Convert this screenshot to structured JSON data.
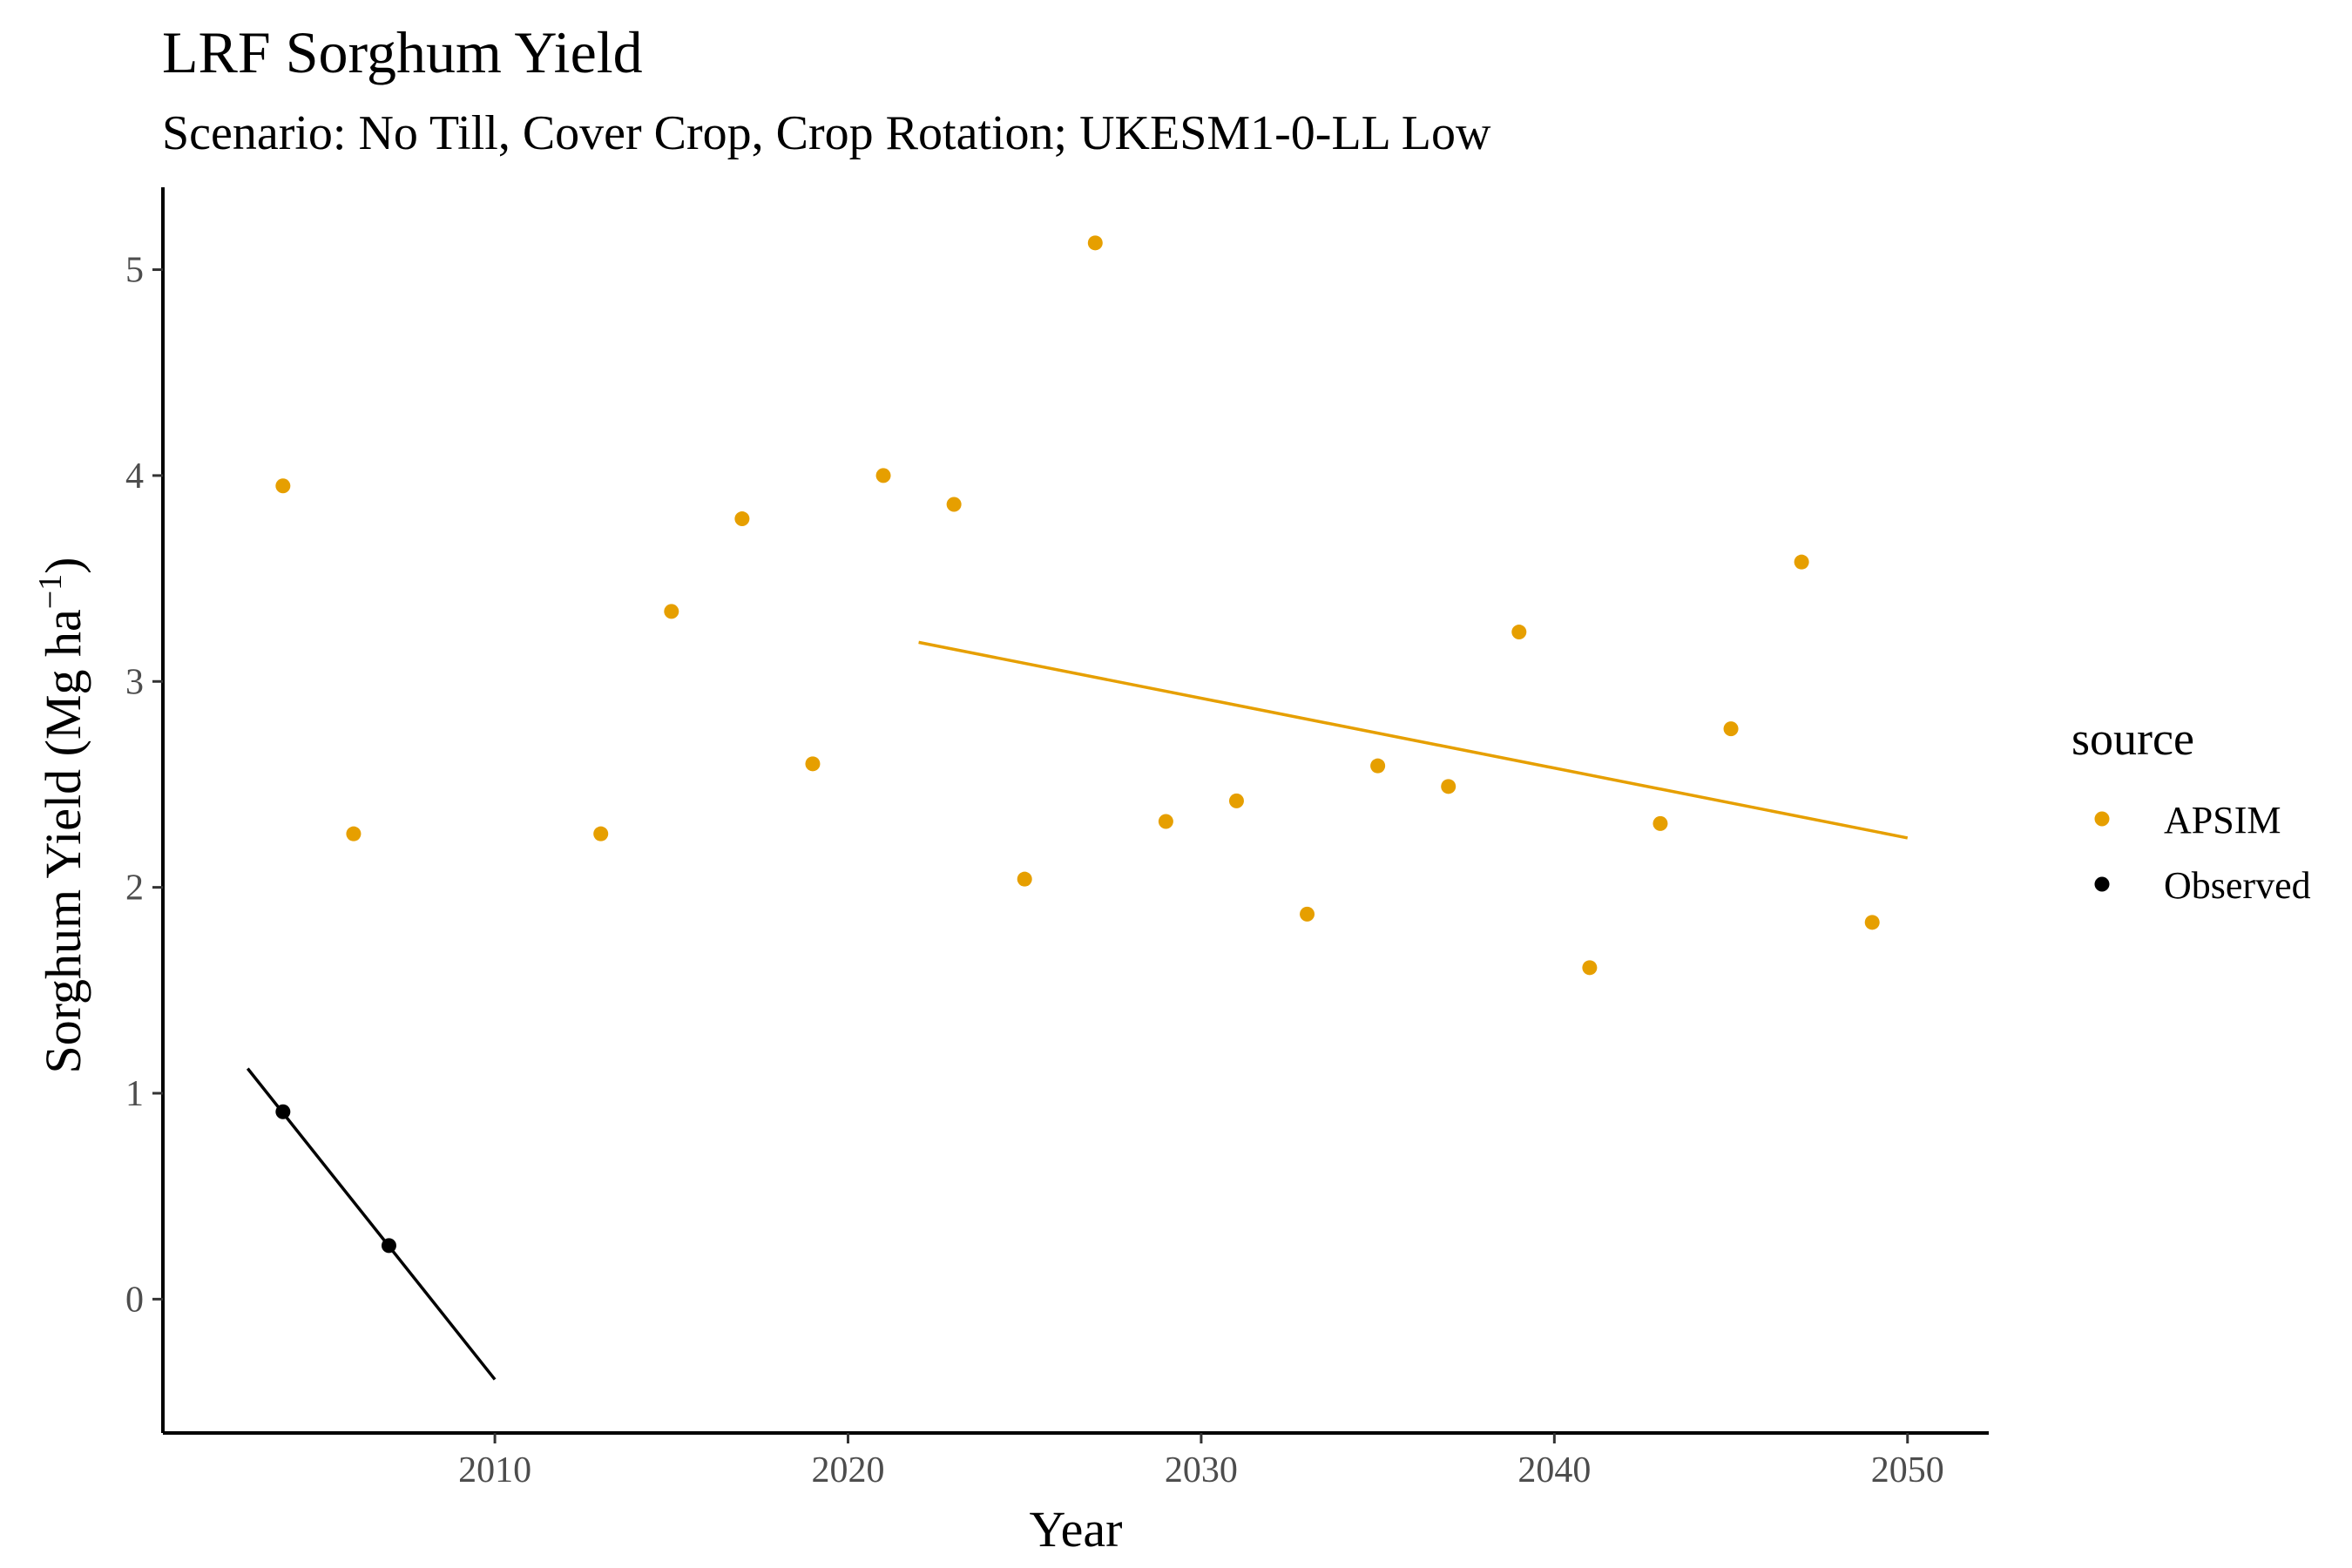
{
  "chart_data": {
    "type": "scatter",
    "title": "LRF Sorghum Yield",
    "subtitle": "Scenario: No Till, Cover Crop, Crop Rotation; UKESM1-0-LL Low",
    "xlabel": "Year",
    "ylabel": "Sorghum Yield (Mg ha",
    "ylabel_superscript": "−1",
    "ylabel_close": ")",
    "xlim": [
      2000.6,
      2052.3
    ],
    "ylim": [
      -0.65,
      5.4
    ],
    "x_ticks": [
      2010,
      2020,
      2030,
      2040,
      2050
    ],
    "y_ticks": [
      0,
      1,
      2,
      3,
      4,
      5
    ],
    "grid": false,
    "legend": {
      "title": "source",
      "position": "right"
    },
    "series": [
      {
        "name": "APSIM",
        "color": "#E69F00",
        "points": [
          [
            2004,
            3.95
          ],
          [
            2006,
            2.26
          ],
          [
            2013,
            2.26
          ],
          [
            2015,
            3.34
          ],
          [
            2017,
            3.79
          ],
          [
            2019,
            2.6
          ],
          [
            2021,
            4.0
          ],
          [
            2023,
            3.86
          ],
          [
            2025,
            2.04
          ],
          [
            2027,
            5.13
          ],
          [
            2029,
            2.32
          ],
          [
            2031,
            2.42
          ],
          [
            2033,
            1.87
          ],
          [
            2035,
            2.59
          ],
          [
            2037,
            2.49
          ],
          [
            2039,
            3.24
          ],
          [
            2041,
            1.61
          ],
          [
            2043,
            2.31
          ],
          [
            2045,
            2.77
          ],
          [
            2047,
            3.58
          ],
          [
            2049,
            1.83
          ]
        ],
        "trend": [
          [
            2022,
            3.19
          ],
          [
            2050,
            2.24
          ]
        ]
      },
      {
        "name": "Observed",
        "color": "#000000",
        "points": [
          [
            2004,
            0.91
          ],
          [
            2007,
            0.26
          ]
        ],
        "trend": [
          [
            2003,
            1.12
          ],
          [
            2010,
            -0.39
          ]
        ]
      }
    ]
  }
}
